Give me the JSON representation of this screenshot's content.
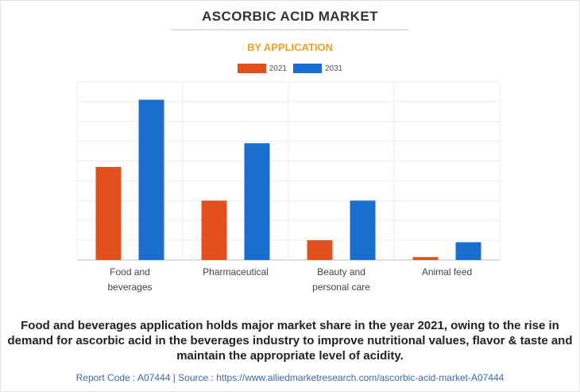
{
  "title": "ASCORBIC ACID MARKET",
  "subtitle": "BY APPLICATION",
  "colors": {
    "series_2021": "#e2501c",
    "series_2031": "#1a6fce",
    "subtitle": "#f0a020"
  },
  "chart_data": {
    "type": "bar",
    "categories": [
      [
        "Food and",
        "beverages"
      ],
      [
        "Pharmaceutical"
      ],
      [
        "Beauty and",
        "personal care"
      ],
      [
        "Animal feed"
      ]
    ],
    "series": [
      {
        "name": "2021",
        "values": [
          4.7,
          3.0,
          1.0,
          0.15
        ]
      },
      {
        "name": "2031",
        "values": [
          8.1,
          5.9,
          3.0,
          0.9
        ]
      }
    ],
    "ylim": [
      0,
      9
    ],
    "grid": true,
    "legend_position": "top-center"
  },
  "caption": "Food and beverages application holds major market share in the year 2021, owing to the rise in demand for ascorbic acid in the beverages industry to improve nutritional values, flavor & taste and maintain the appropriate level of acidity.",
  "footer": "Report Code : A07444  |  Source : https://www.alliedmarketresearch.com/ascorbic-acid-market-A07444"
}
